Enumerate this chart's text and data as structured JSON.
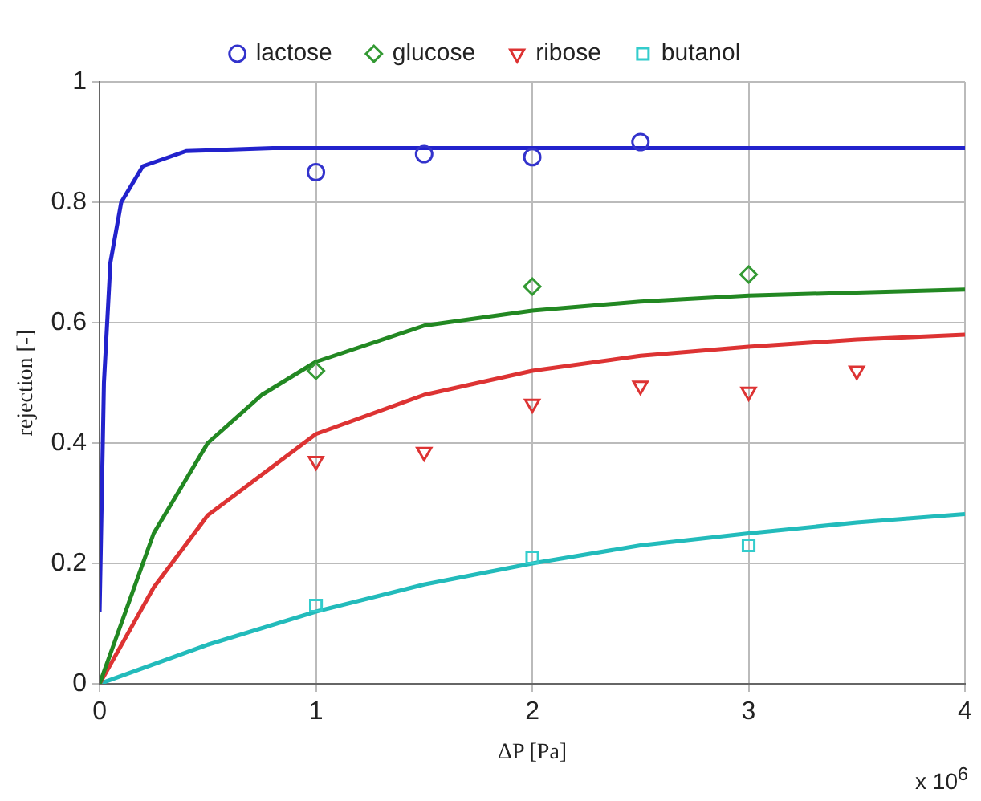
{
  "chart_data": {
    "type": "scatter",
    "xlabel": "ΔP [Pa]",
    "ylabel": "rejection [-]",
    "annotations": [
      "x 10$^{6}$"
    ],
    "xlim": [
      0,
      4
    ],
    "xticks": [
      0,
      1,
      2,
      3,
      4
    ],
    "ylim": [
      0,
      1
    ],
    "yticks": [
      0,
      0.2,
      0.4,
      0.6,
      0.8,
      1
    ],
    "grid": true,
    "legend": "top",
    "series": [
      {
        "name": "lactose",
        "color": "#3333cc",
        "marker": "circle",
        "x": [
          1,
          1.5,
          2,
          2.5
        ],
        "values": [
          0.85,
          0.88,
          0.875,
          0.9
        ]
      },
      {
        "name": "glucose",
        "color": "#339933",
        "marker": "diamond",
        "x": [
          1,
          2,
          3
        ],
        "values": [
          0.52,
          0.66,
          0.68
        ]
      },
      {
        "name": "ribose",
        "color": "#dd3333",
        "marker": "triangle",
        "x": [
          1,
          1.5,
          2,
          2.5,
          3,
          3.5
        ],
        "values": [
          0.37,
          0.385,
          0.465,
          0.495,
          0.485,
          0.52
        ]
      },
      {
        "name": "butanol",
        "color": "#33cccc",
        "marker": "square",
        "x": [
          1,
          2,
          3
        ],
        "values": [
          0.13,
          0.21,
          0.23
        ]
      },
      {
        "type": "line",
        "color": "#2222cc",
        "x": [
          0,
          0.02,
          0.05,
          0.1,
          0.2,
          0.4,
          0.8,
          4
        ],
        "values": [
          0.12,
          0.5,
          0.7,
          0.8,
          0.86,
          0.885,
          0.89,
          0.89
        ]
      },
      {
        "type": "line",
        "color": "#228822",
        "x": [
          0,
          0.1,
          0.25,
          0.5,
          0.75,
          1,
          1.5,
          2,
          2.5,
          3,
          3.5,
          4
        ],
        "values": [
          0,
          0.1,
          0.25,
          0.4,
          0.48,
          0.535,
          0.595,
          0.62,
          0.635,
          0.645,
          0.65,
          0.655
        ]
      },
      {
        "type": "line",
        "color": "#dd3333",
        "x": [
          0,
          0.25,
          0.5,
          1,
          1.5,
          2,
          2.5,
          3,
          3.5,
          4
        ],
        "values": [
          0,
          0.16,
          0.28,
          0.415,
          0.48,
          0.52,
          0.545,
          0.56,
          0.572,
          0.58
        ]
      },
      {
        "type": "line",
        "color": "#22bbbb",
        "x": [
          0,
          0.5,
          1,
          1.5,
          2,
          2.5,
          3,
          3.5,
          4
        ],
        "values": [
          0,
          0.065,
          0.12,
          0.165,
          0.2,
          0.23,
          0.25,
          0.268,
          0.282
        ]
      }
    ]
  }
}
